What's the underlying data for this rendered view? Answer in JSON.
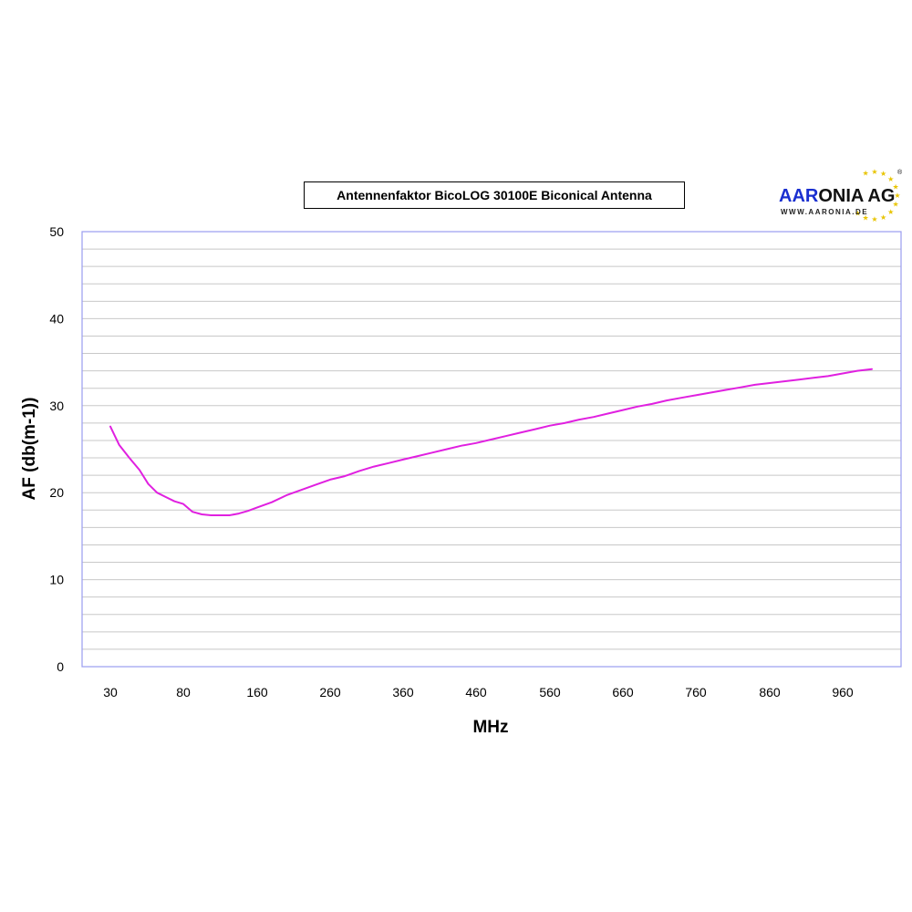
{
  "chart_data": {
    "type": "line",
    "title": "Antennenfaktor BicoLOG 30100E Biconical Antenna",
    "xlabel": "MHz",
    "ylabel": "AF (db(m-1))",
    "ylim": [
      0,
      50
    ],
    "yticks": [
      "50",
      "40",
      "30",
      "20",
      "10",
      "0"
    ],
    "xtick_labels": [
      "30",
      "80",
      "160",
      "260",
      "360",
      "460",
      "560",
      "660",
      "760",
      "860",
      "960"
    ],
    "grid": "horizontal",
    "series": [
      {
        "color": "#e020e0",
        "x": [
          30,
          36,
          43,
          50,
          56,
          62,
          68,
          74,
          80,
          90,
          100,
          110,
          120,
          130,
          140,
          150,
          160,
          180,
          200,
          220,
          240,
          260,
          280,
          300,
          320,
          340,
          360,
          380,
          400,
          420,
          440,
          460,
          480,
          500,
          520,
          540,
          560,
          580,
          600,
          620,
          640,
          660,
          680,
          700,
          720,
          740,
          760,
          780,
          800,
          820,
          840,
          860,
          880,
          900,
          920,
          940,
          960,
          980,
          1000
        ],
        "y": [
          27.6,
          25.5,
          24.0,
          22.6,
          21.0,
          20.0,
          19.5,
          19.0,
          18.7,
          17.8,
          17.5,
          17.4,
          17.4,
          17.4,
          17.6,
          17.9,
          18.3,
          18.9,
          19.7,
          20.3,
          20.9,
          21.5,
          21.9,
          22.5,
          23.0,
          23.4,
          23.8,
          24.2,
          24.6,
          25.0,
          25.4,
          25.7,
          26.1,
          26.5,
          26.9,
          27.3,
          27.7,
          28.0,
          28.4,
          28.7,
          29.1,
          29.5,
          29.9,
          30.2,
          30.6,
          30.9,
          31.2,
          31.5,
          31.8,
          32.1,
          32.4,
          32.6,
          32.8,
          33.0,
          33.2,
          33.4,
          33.7,
          34.0,
          34.2
        ]
      }
    ]
  },
  "logo": {
    "brand_part1": "AAR",
    "brand_part2": "ONIA AG",
    "url": "WWW.AARONIA.DE",
    "registered": "®"
  }
}
